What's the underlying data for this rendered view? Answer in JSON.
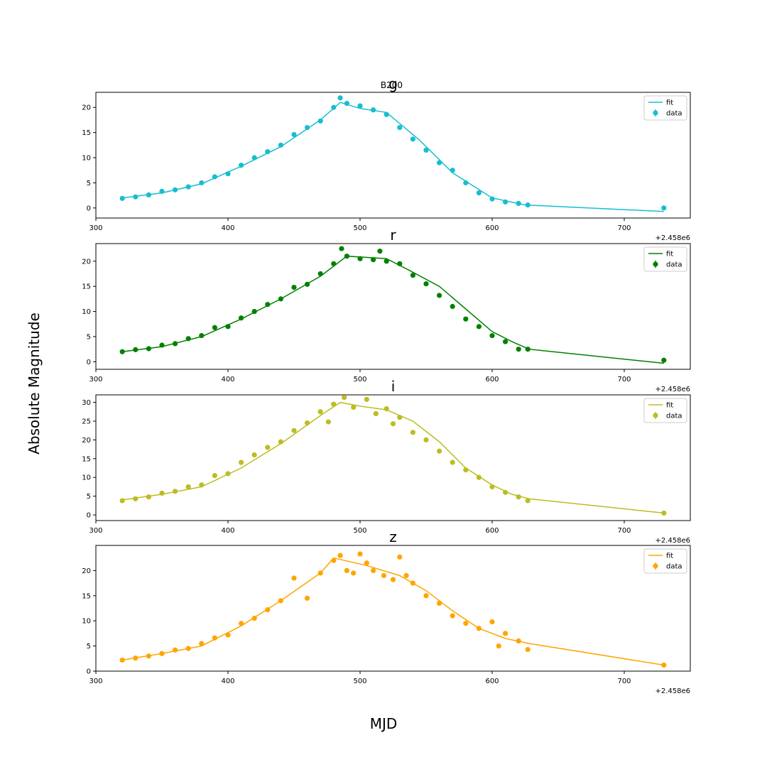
{
  "figure": {
    "suptitle": "MJD",
    "ylabel": "Absolute Magnitude",
    "axes_title": "B200",
    "offset_text": "+2.458e6"
  },
  "chart_data": [
    {
      "type": "scatter",
      "title": "g",
      "color": "#17becf",
      "xlim": [
        300,
        750
      ],
      "ylim": [
        -2,
        23
      ],
      "xticks": [
        300,
        400,
        500,
        600,
        700
      ],
      "yticks": [
        0,
        5,
        10,
        15,
        20
      ],
      "legend": {
        "placement": "top-right",
        "entries": [
          "fit",
          "data"
        ]
      },
      "fit": {
        "x": [
          320,
          350,
          380,
          410,
          440,
          470,
          485,
          500,
          520,
          545,
          570,
          600,
          625,
          730
        ],
        "y": [
          2.0,
          3.0,
          4.8,
          8.3,
          12.2,
          17.5,
          21.0,
          19.8,
          19.0,
          13.5,
          7.0,
          2.0,
          0.6,
          -0.7
        ]
      },
      "points": {
        "x": [
          320,
          330,
          340,
          350,
          360,
          370,
          380,
          390,
          400,
          410,
          420,
          430,
          440,
          450,
          460,
          470,
          480,
          485,
          490,
          500,
          510,
          520,
          530,
          540,
          550,
          560,
          570,
          580,
          590,
          600,
          610,
          620,
          627,
          730
        ],
        "y": [
          1.9,
          2.2,
          2.6,
          3.3,
          3.6,
          4.2,
          5.0,
          6.2,
          6.8,
          8.5,
          10.0,
          11.2,
          12.5,
          14.6,
          16.0,
          17.3,
          20.0,
          21.9,
          20.8,
          20.3,
          19.5,
          18.6,
          16.0,
          13.7,
          11.5,
          9.0,
          7.5,
          5.0,
          3.0,
          1.8,
          1.2,
          0.9,
          0.6,
          0.0
        ]
      }
    },
    {
      "type": "scatter",
      "title": "r",
      "color": "#008000",
      "xlim": [
        300,
        750
      ],
      "ylim": [
        -1.5,
        23.5
      ],
      "xticks": [
        300,
        400,
        500,
        600,
        700
      ],
      "yticks": [
        0,
        5,
        10,
        15,
        20
      ],
      "legend": {
        "placement": "top-right",
        "entries": [
          "fit",
          "data"
        ]
      },
      "fit": {
        "x": [
          320,
          350,
          380,
          410,
          440,
          470,
          490,
          520,
          535,
          560,
          580,
          600,
          615,
          628,
          730
        ],
        "y": [
          2.0,
          3.0,
          5.0,
          8.5,
          12.5,
          17.0,
          21.0,
          20.5,
          18.5,
          15.0,
          10.5,
          6.0,
          4.0,
          2.5,
          -0.3
        ]
      },
      "points": {
        "x": [
          320,
          330,
          340,
          350,
          360,
          370,
          380,
          390,
          400,
          410,
          420,
          430,
          440,
          450,
          460,
          470,
          480,
          486,
          490,
          500,
          510,
          515,
          520,
          530,
          540,
          550,
          560,
          570,
          580,
          590,
          600,
          610,
          620,
          627,
          730
        ],
        "y": [
          2.0,
          2.4,
          2.6,
          3.3,
          3.6,
          4.6,
          5.2,
          6.8,
          7.0,
          8.7,
          10.0,
          11.4,
          12.5,
          14.8,
          15.4,
          17.5,
          19.5,
          22.5,
          21.0,
          20.5,
          20.3,
          22.0,
          20.0,
          19.5,
          17.2,
          15.5,
          13.2,
          11.0,
          8.5,
          7.0,
          5.2,
          4.0,
          2.5,
          2.5,
          0.3
        ]
      }
    },
    {
      "type": "scatter",
      "title": "i",
      "color": "#bcbd22",
      "xlim": [
        300,
        750
      ],
      "ylim": [
        -1.5,
        32
      ],
      "xticks": [
        300,
        400,
        500,
        600,
        700
      ],
      "yticks": [
        0,
        5,
        10,
        15,
        20,
        25,
        30
      ],
      "legend": {
        "placement": "top-right",
        "entries": [
          "fit",
          "data"
        ]
      },
      "fit": {
        "x": [
          320,
          350,
          380,
          410,
          440,
          470,
          485,
          500,
          520,
          540,
          560,
          580,
          600,
          615,
          628,
          730
        ],
        "y": [
          4.0,
          5.5,
          7.5,
          12.5,
          19.0,
          26.5,
          30.0,
          29.0,
          28.0,
          25.0,
          19.5,
          12.5,
          8.0,
          5.5,
          4.3,
          0.5
        ]
      },
      "points": {
        "x": [
          320,
          330,
          340,
          350,
          360,
          370,
          380,
          390,
          400,
          410,
          420,
          430,
          440,
          450,
          460,
          470,
          476,
          480,
          488,
          495,
          505,
          512,
          520,
          525,
          530,
          540,
          550,
          560,
          570,
          580,
          590,
          600,
          610,
          620,
          627,
          730
        ],
        "y": [
          3.8,
          4.3,
          4.8,
          5.8,
          6.3,
          7.5,
          8.0,
          10.5,
          11.0,
          14.0,
          16.0,
          18.0,
          19.5,
          22.5,
          24.5,
          27.5,
          24.8,
          29.5,
          31.3,
          28.7,
          30.8,
          27.0,
          28.3,
          24.3,
          26.0,
          22.0,
          20.0,
          17.0,
          14.0,
          12.0,
          10.0,
          7.5,
          6.0,
          4.8,
          3.8,
          0.5
        ]
      }
    },
    {
      "type": "scatter",
      "title": "z",
      "color": "#ffa500",
      "xlim": [
        300,
        750
      ],
      "ylim": [
        0,
        25
      ],
      "xticks": [
        300,
        400,
        500,
        600,
        700
      ],
      "yticks": [
        0,
        5,
        10,
        15,
        20
      ],
      "legend": {
        "placement": "top-right",
        "entries": [
          "fit",
          "data"
        ]
      },
      "fit": {
        "x": [
          320,
          350,
          380,
          410,
          440,
          470,
          480,
          505,
          530,
          550,
          570,
          590,
          610,
          628,
          730
        ],
        "y": [
          2.2,
          3.5,
          5.0,
          9.0,
          14.0,
          19.5,
          22.5,
          21.0,
          19.0,
          16.0,
          12.0,
          8.5,
          6.5,
          5.5,
          1.2
        ]
      },
      "points": {
        "x": [
          320,
          330,
          340,
          350,
          360,
          370,
          380,
          390,
          400,
          410,
          420,
          430,
          440,
          450,
          460,
          470,
          480,
          485,
          490,
          495,
          500,
          505,
          510,
          518,
          525,
          530,
          535,
          540,
          550,
          560,
          570,
          580,
          590,
          600,
          605,
          610,
          620,
          627,
          730
        ],
        "y": [
          2.2,
          2.6,
          3.0,
          3.5,
          4.2,
          4.5,
          5.5,
          6.6,
          7.2,
          9.5,
          10.5,
          12.2,
          14.0,
          18.5,
          14.5,
          19.5,
          22.0,
          23.0,
          20.0,
          19.5,
          23.3,
          21.5,
          20.0,
          19.0,
          18.2,
          22.7,
          19.0,
          17.5,
          15.0,
          13.5,
          11.0,
          9.5,
          8.5,
          9.8,
          5.0,
          7.5,
          6.0,
          4.3,
          1.2
        ]
      }
    }
  ]
}
